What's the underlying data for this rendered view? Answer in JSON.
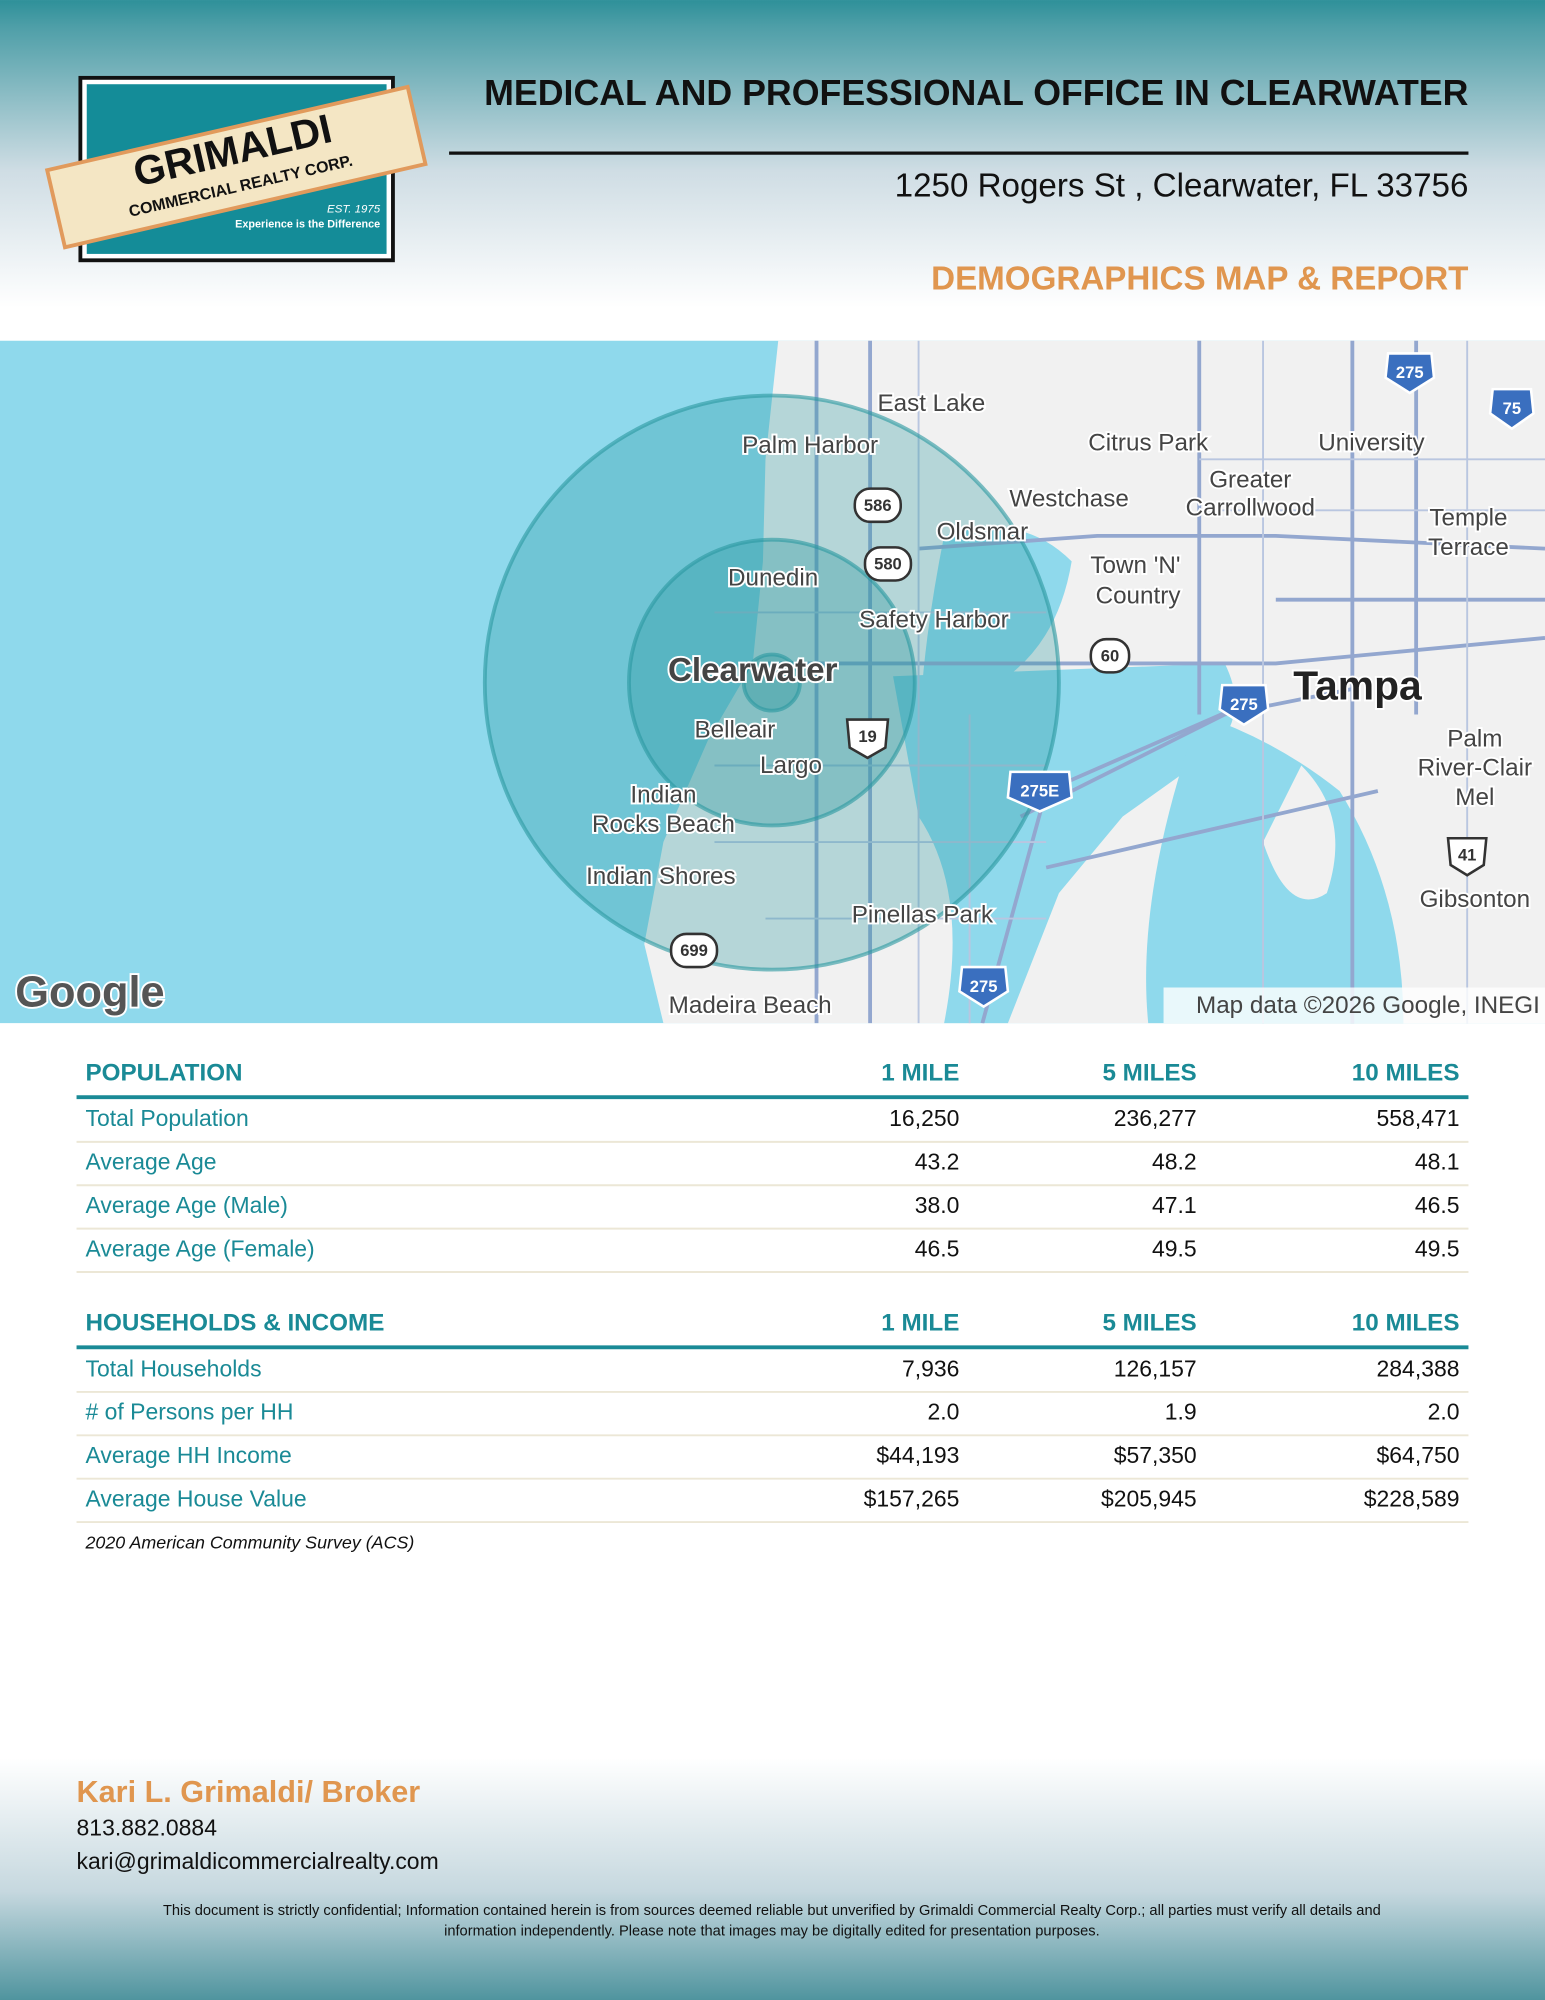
{
  "header": {
    "title": "MEDICAL AND PROFESSIONAL OFFICE IN CLEARWATER",
    "address": "1250 Rogers St , Clearwater, FL 33756",
    "subtitle": "DEMOGRAPHICS MAP & REPORT",
    "logo": {
      "name": "GRIMALDI",
      "tagline": "COMMERCIAL REALTY CORP.",
      "established": "EST. 1975",
      "slogan": "Experience is the Difference"
    }
  },
  "map": {
    "labels": [
      "East Lake",
      "Palm Harbor",
      "Citrus Park",
      "University",
      "Westchase",
      "Greater",
      "Carrollwood",
      "Temple",
      "Terrace",
      "Oldsmar",
      "Town 'N'",
      "Country",
      "Dunedin",
      "Safety Harbor",
      "Clearwater",
      "Tampa",
      "Belleair",
      "Largo",
      "Palm",
      "River-Clair",
      "Mel",
      "Indian",
      "Rocks Beach",
      "Indian Shores",
      "Gibsonton",
      "Pinellas Park",
      "Madeira Beach"
    ],
    "shields": [
      "586",
      "580",
      "60",
      "19",
      "275",
      "275E",
      "41",
      "699",
      "275",
      "275",
      "75"
    ],
    "brand": "Google",
    "attribution": "Map data ©2026 Google, INEGI"
  },
  "tables": [
    {
      "columns": [
        "POPULATION",
        "1 MILE",
        "5 MILES",
        "10 MILES"
      ],
      "rows": [
        [
          "Total Population",
          "16,250",
          "236,277",
          "558,471"
        ],
        [
          "Average Age",
          "43.2",
          "48.2",
          "48.1"
        ],
        [
          "Average Age (Male)",
          "38.0",
          "47.1",
          "46.5"
        ],
        [
          "Average Age (Female)",
          "46.5",
          "49.5",
          "49.5"
        ]
      ]
    },
    {
      "columns": [
        "HOUSEHOLDS & INCOME",
        "1 MILE",
        "5 MILES",
        "10 MILES"
      ],
      "rows": [
        [
          "Total Households",
          "7,936",
          "126,157",
          "284,388"
        ],
        [
          "# of Persons per HH",
          "2.0",
          "1.9",
          "2.0"
        ],
        [
          "Average HH Income",
          "$44,193",
          "$57,350",
          "$64,750"
        ],
        [
          "Average House Value",
          "$157,265",
          "$205,945",
          "$228,589"
        ]
      ]
    }
  ],
  "source_note": "2020 American Community Survey (ACS)",
  "contact": {
    "name": "Kari L. Grimaldi/ Broker",
    "phone": "813.882.0884",
    "email": "kari@grimaldicommercialrealty.com"
  },
  "disclaimer": [
    "This document is strictly confidential; Information contained herein is from sources deemed reliable but unverified by Grimaldi Commercial Realty Corp.; all parties must verify all details and",
    "information independently. Please note that images may be digitally edited for presentation purposes."
  ]
}
